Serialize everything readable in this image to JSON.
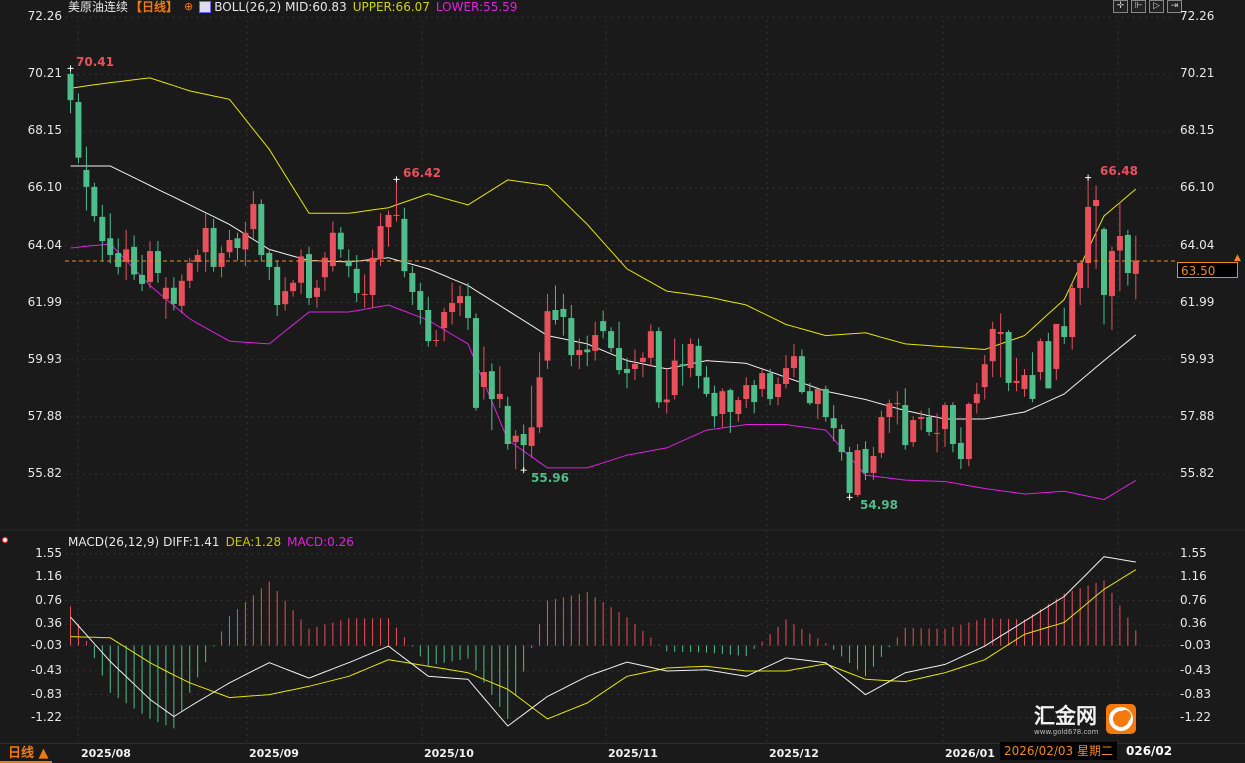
{
  "header": {
    "instrument": "美原油连续",
    "period": "【日线】",
    "indicator": "BOLL(26,2)",
    "mid": "MID:60.83",
    "upper": "UPPER:66.07",
    "lower": "LOWER:55.59"
  },
  "macd_header": {
    "name": "MACD(26,12,9)",
    "diff": "DIFF:1.41",
    "dea": "DEA:1.28",
    "macd": "MACD:0.26"
  },
  "toolbar": [
    "crosshair-icon",
    "zoom-range-icon",
    "play-icon",
    "exit-icon"
  ],
  "price_axis": [
    "72.26",
    "70.21",
    "68.15",
    "66.10",
    "64.04",
    "61.99",
    "59.93",
    "57.88",
    "55.82"
  ],
  "macd_axis": [
    "1.55",
    "1.16",
    "0.76",
    "0.36",
    "-0.03",
    "-0.43",
    "-0.83",
    "-1.22"
  ],
  "current_price": "63.50",
  "marks": {
    "high1": "70.41",
    "high2": "66.42",
    "low1": "55.96",
    "low2": "54.98",
    "high3": "66.48"
  },
  "time_axis": [
    "2025/08",
    "2025/09",
    "2025/10",
    "2025/11",
    "2025/12",
    "2026/01"
  ],
  "period_button": "日线 ▲",
  "tooltip_date": "2026/02/03 星期二",
  "tooltip_tail": "026/02",
  "watermark": {
    "name": "汇金网",
    "url": "www.gold678.com"
  },
  "colors": {
    "up": "#e8505b",
    "down": "#4fbd8a",
    "upper": "#e6e600",
    "mid": "#f0f0f0",
    "lower": "#e020e0",
    "dea": "#e6e600",
    "diff": "#f0f0f0",
    "accent": "#f08a1c",
    "background": "#1a1a1a"
  },
  "chart_data": {
    "type": "candlestick",
    "price_range": [
      54.5,
      72.26
    ],
    "ohlc": [
      [
        70.21,
        70.41,
        68.8,
        69.27
      ],
      [
        69.2,
        69.5,
        67.0,
        67.2
      ],
      [
        66.76,
        67.6,
        65.3,
        66.15
      ],
      [
        66.15,
        66.3,
        64.9,
        65.1
      ],
      [
        65.07,
        65.5,
        63.5,
        64.2
      ],
      [
        64.3,
        65.2,
        63.4,
        63.7
      ],
      [
        63.77,
        64.3,
        63.0,
        63.27
      ],
      [
        63.45,
        64.6,
        62.8,
        63.9
      ],
      [
        63.99,
        64.4,
        62.8,
        63.0
      ],
      [
        62.98,
        63.7,
        62.4,
        62.66
      ],
      [
        62.73,
        64.2,
        62.5,
        63.84
      ],
      [
        63.84,
        64.2,
        62.7,
        63.05
      ],
      [
        62.12,
        62.9,
        61.4,
        62.52
      ],
      [
        62.52,
        62.9,
        61.7,
        61.94
      ],
      [
        61.87,
        63.0,
        61.6,
        62.77
      ],
      [
        62.77,
        63.6,
        62.5,
        63.41
      ],
      [
        63.45,
        63.9,
        63.1,
        63.7
      ],
      [
        63.8,
        65.2,
        63.1,
        64.67
      ],
      [
        64.67,
        65.0,
        63.1,
        63.27
      ],
      [
        63.27,
        64.0,
        62.9,
        63.77
      ],
      [
        63.8,
        64.6,
        63.6,
        64.24
      ],
      [
        64.3,
        64.5,
        63.5,
        63.95
      ],
      [
        63.9,
        64.9,
        63.3,
        64.5
      ],
      [
        64.63,
        66.0,
        64.3,
        65.53
      ],
      [
        65.53,
        65.7,
        63.5,
        63.7
      ],
      [
        63.77,
        63.9,
        62.8,
        63.27
      ],
      [
        63.27,
        63.5,
        61.5,
        61.9
      ],
      [
        61.93,
        62.9,
        61.7,
        62.4
      ],
      [
        62.4,
        62.8,
        62.2,
        62.7
      ],
      [
        62.7,
        63.9,
        62.3,
        63.65
      ],
      [
        63.73,
        64.0,
        61.9,
        62.15
      ],
      [
        62.19,
        62.8,
        61.8,
        62.52
      ],
      [
        62.9,
        63.8,
        62.4,
        63.6
      ],
      [
        63.3,
        64.9,
        63.1,
        64.5
      ],
      [
        64.5,
        64.7,
        63.6,
        63.9
      ],
      [
        63.5,
        63.9,
        62.9,
        63.3
      ],
      [
        63.2,
        63.7,
        62.0,
        62.33
      ],
      [
        62.26,
        63.0,
        61.8,
        62.3
      ],
      [
        62.26,
        63.9,
        61.8,
        63.6
      ],
      [
        63.55,
        65.2,
        63.3,
        64.74
      ],
      [
        64.7,
        65.3,
        64.0,
        65.14
      ],
      [
        65.14,
        66.42,
        64.9,
        65.14
      ],
      [
        65.0,
        65.4,
        62.9,
        63.12
      ],
      [
        63.05,
        63.3,
        61.9,
        62.37
      ],
      [
        62.4,
        62.7,
        61.2,
        61.72
      ],
      [
        61.72,
        62.2,
        60.4,
        60.6
      ],
      [
        60.64,
        61.0,
        60.4,
        60.64
      ],
      [
        61.07,
        61.8,
        60.6,
        61.65
      ],
      [
        61.65,
        62.7,
        61.2,
        61.97
      ],
      [
        61.97,
        62.6,
        61.5,
        62.22
      ],
      [
        62.22,
        62.7,
        61.0,
        61.43
      ],
      [
        61.43,
        61.6,
        58.1,
        58.2
      ],
      [
        58.95,
        60.4,
        58.5,
        59.49
      ],
      [
        59.52,
        59.8,
        57.4,
        58.52
      ],
      [
        58.52,
        59.7,
        58.2,
        58.7
      ],
      [
        58.27,
        58.6,
        56.7,
        56.9
      ],
      [
        56.97,
        57.4,
        56.0,
        57.2
      ],
      [
        57.26,
        57.6,
        55.96,
        56.86
      ],
      [
        56.83,
        59.0,
        56.4,
        57.5
      ],
      [
        57.5,
        60.2,
        57.3,
        59.3
      ],
      [
        59.9,
        62.3,
        59.6,
        61.68
      ],
      [
        61.72,
        62.6,
        61.2,
        61.36
      ],
      [
        61.76,
        62.3,
        60.8,
        61.47
      ],
      [
        61.43,
        61.9,
        59.7,
        60.1
      ],
      [
        60.1,
        60.7,
        59.6,
        60.28
      ],
      [
        60.3,
        60.8,
        59.7,
        60.2
      ],
      [
        60.25,
        61.3,
        59.9,
        60.82
      ],
      [
        61.32,
        61.7,
        60.7,
        60.96
      ],
      [
        60.96,
        61.1,
        60.2,
        60.35
      ],
      [
        60.35,
        61.3,
        59.4,
        59.56
      ],
      [
        59.6,
        60.0,
        58.9,
        59.45
      ],
      [
        59.6,
        60.3,
        59.2,
        59.78
      ],
      [
        59.85,
        60.2,
        59.3,
        60.0
      ],
      [
        60.0,
        61.2,
        59.7,
        60.96
      ],
      [
        60.96,
        61.1,
        58.2,
        58.4
      ],
      [
        58.4,
        59.6,
        58.0,
        58.5
      ],
      [
        58.66,
        60.7,
        58.5,
        59.9
      ],
      [
        59.77,
        60.5,
        59.0,
        59.7
      ],
      [
        59.63,
        60.7,
        59.3,
        60.5
      ],
      [
        60.43,
        60.7,
        58.9,
        59.35
      ],
      [
        59.3,
        59.7,
        58.6,
        58.7
      ],
      [
        58.74,
        59.0,
        57.5,
        57.9
      ],
      [
        57.98,
        58.9,
        57.5,
        58.8
      ],
      [
        58.84,
        58.9,
        57.3,
        58.05
      ],
      [
        57.98,
        58.6,
        57.7,
        58.48
      ],
      [
        58.52,
        59.3,
        58.2,
        59.02
      ],
      [
        59.02,
        59.2,
        58.0,
        58.41
      ],
      [
        58.88,
        59.6,
        58.6,
        59.45
      ],
      [
        59.45,
        59.6,
        58.3,
        58.52
      ],
      [
        58.59,
        59.3,
        58.3,
        59.06
      ],
      [
        59.06,
        60.1,
        58.9,
        59.63
      ],
      [
        59.63,
        60.5,
        59.3,
        60.06
      ],
      [
        60.06,
        60.3,
        58.7,
        58.77
      ],
      [
        58.8,
        59.1,
        58.3,
        58.37
      ],
      [
        58.34,
        58.9,
        57.8,
        58.88
      ],
      [
        58.88,
        59.0,
        57.7,
        57.87
      ],
      [
        57.83,
        58.3,
        57.0,
        57.47
      ],
      [
        57.44,
        57.6,
        56.3,
        56.61
      ],
      [
        56.61,
        56.8,
        54.98,
        55.14
      ],
      [
        55.07,
        56.9,
        55.0,
        56.68
      ],
      [
        56.72,
        57.0,
        55.6,
        55.86
      ],
      [
        55.86,
        56.8,
        55.6,
        56.47
      ],
      [
        56.58,
        58.1,
        56.4,
        57.87
      ],
      [
        57.87,
        58.5,
        57.3,
        58.37
      ],
      [
        58.37,
        58.8,
        57.6,
        58.37
      ],
      [
        58.3,
        58.9,
        56.7,
        56.86
      ],
      [
        56.97,
        57.9,
        56.8,
        57.76
      ],
      [
        57.8,
        58.1,
        57.4,
        57.87
      ],
      [
        57.87,
        58.2,
        57.2,
        57.33
      ],
      [
        57.3,
        58.0,
        56.6,
        57.3
      ],
      [
        57.44,
        58.4,
        56.8,
        58.3
      ],
      [
        58.3,
        58.4,
        56.6,
        56.9
      ],
      [
        56.94,
        57.5,
        56.0,
        56.36
      ],
      [
        56.36,
        58.4,
        56.1,
        58.34
      ],
      [
        58.37,
        59.1,
        58.0,
        58.7
      ],
      [
        58.95,
        60.1,
        58.5,
        59.77
      ],
      [
        59.88,
        61.3,
        59.3,
        61.04
      ],
      [
        60.86,
        61.6,
        59.3,
        60.93
      ],
      [
        60.93,
        61.0,
        58.8,
        59.1
      ],
      [
        59.1,
        60.0,
        58.8,
        59.17
      ],
      [
        58.88,
        59.6,
        58.6,
        59.38
      ],
      [
        59.38,
        60.2,
        58.4,
        58.52
      ],
      [
        59.49,
        60.7,
        59.2,
        60.6
      ],
      [
        60.6,
        60.9,
        58.9,
        58.9
      ],
      [
        59.6,
        61.2,
        59.2,
        61.22
      ],
      [
        61.14,
        61.8,
        60.5,
        60.75
      ],
      [
        60.75,
        62.7,
        60.3,
        62.51
      ],
      [
        62.51,
        63.5,
        61.9,
        63.41
      ],
      [
        63.41,
        66.48,
        62.5,
        65.43
      ],
      [
        65.46,
        66.2,
        63.2,
        65.68
      ],
      [
        64.63,
        64.7,
        61.2,
        62.26
      ],
      [
        62.22,
        64.0,
        61.0,
        63.84
      ],
      [
        63.86,
        65.6,
        62.4,
        64.38
      ],
      [
        64.42,
        64.6,
        62.6,
        63.05
      ],
      [
        63.02,
        64.4,
        62.1,
        63.5
      ]
    ],
    "boll": {
      "sample_candles": [
        0,
        5,
        10,
        15,
        20,
        25,
        30,
        35,
        40,
        45,
        50,
        55,
        60,
        65,
        70,
        75,
        80,
        85,
        90,
        95,
        100,
        105,
        110,
        115,
        120,
        125,
        130,
        134
      ],
      "upper": [
        69.7,
        69.9,
        70.07,
        69.6,
        69.3,
        67.5,
        65.2,
        65.2,
        65.4,
        65.9,
        65.5,
        66.4,
        66.2,
        64.8,
        63.2,
        62.4,
        62.2,
        61.9,
        61.2,
        60.8,
        60.9,
        60.5,
        60.4,
        60.3,
        60.8,
        62.1,
        65.1,
        66.07
      ],
      "mid": [
        66.9,
        66.9,
        66.2,
        65.5,
        64.8,
        63.9,
        63.5,
        63.45,
        63.6,
        63.2,
        62.6,
        61.7,
        60.8,
        60.5,
        59.9,
        59.6,
        59.9,
        59.8,
        59.3,
        58.8,
        58.5,
        58.1,
        57.8,
        57.8,
        58.05,
        58.7,
        59.9,
        60.83
      ],
      "lower": [
        63.95,
        64.1,
        62.6,
        61.4,
        60.6,
        60.5,
        61.65,
        61.65,
        61.9,
        61.35,
        60.5,
        57.05,
        56.04,
        56.04,
        56.5,
        56.76,
        57.4,
        57.6,
        57.6,
        57.4,
        55.78,
        55.6,
        55.55,
        55.3,
        55.1,
        55.2,
        54.9,
        55.59
      ]
    },
    "macd": {
      "sample_candles": [
        0,
        5,
        10,
        13,
        15,
        20,
        25,
        30,
        35,
        40,
        45,
        50,
        55,
        60,
        65,
        70,
        75,
        80,
        85,
        90,
        95,
        100,
        105,
        110,
        115,
        120,
        125,
        130,
        134
      ],
      "diff": [
        0.48,
        -0.27,
        -0.91,
        -1.2,
        -1.03,
        -0.63,
        -0.29,
        -0.55,
        -0.29,
        -0.01,
        -0.52,
        -0.57,
        -1.36,
        -0.86,
        -0.52,
        -0.28,
        -0.43,
        -0.41,
        -0.52,
        -0.21,
        -0.29,
        -0.83,
        -0.46,
        -0.32,
        -0.01,
        0.41,
        0.83,
        1.5,
        1.41
      ],
      "dea": [
        0.15,
        0.13,
        -0.29,
        -0.5,
        -0.63,
        -0.88,
        -0.83,
        -0.69,
        -0.52,
        -0.24,
        -0.35,
        -0.46,
        -0.74,
        -1.24,
        -0.97,
        -0.52,
        -0.38,
        -0.35,
        -0.43,
        -0.43,
        -0.31,
        -0.57,
        -0.61,
        -0.46,
        -0.24,
        0.19,
        0.39,
        0.95,
        1.28
      ],
      "range": [
        -1.45,
        1.7
      ]
    }
  }
}
